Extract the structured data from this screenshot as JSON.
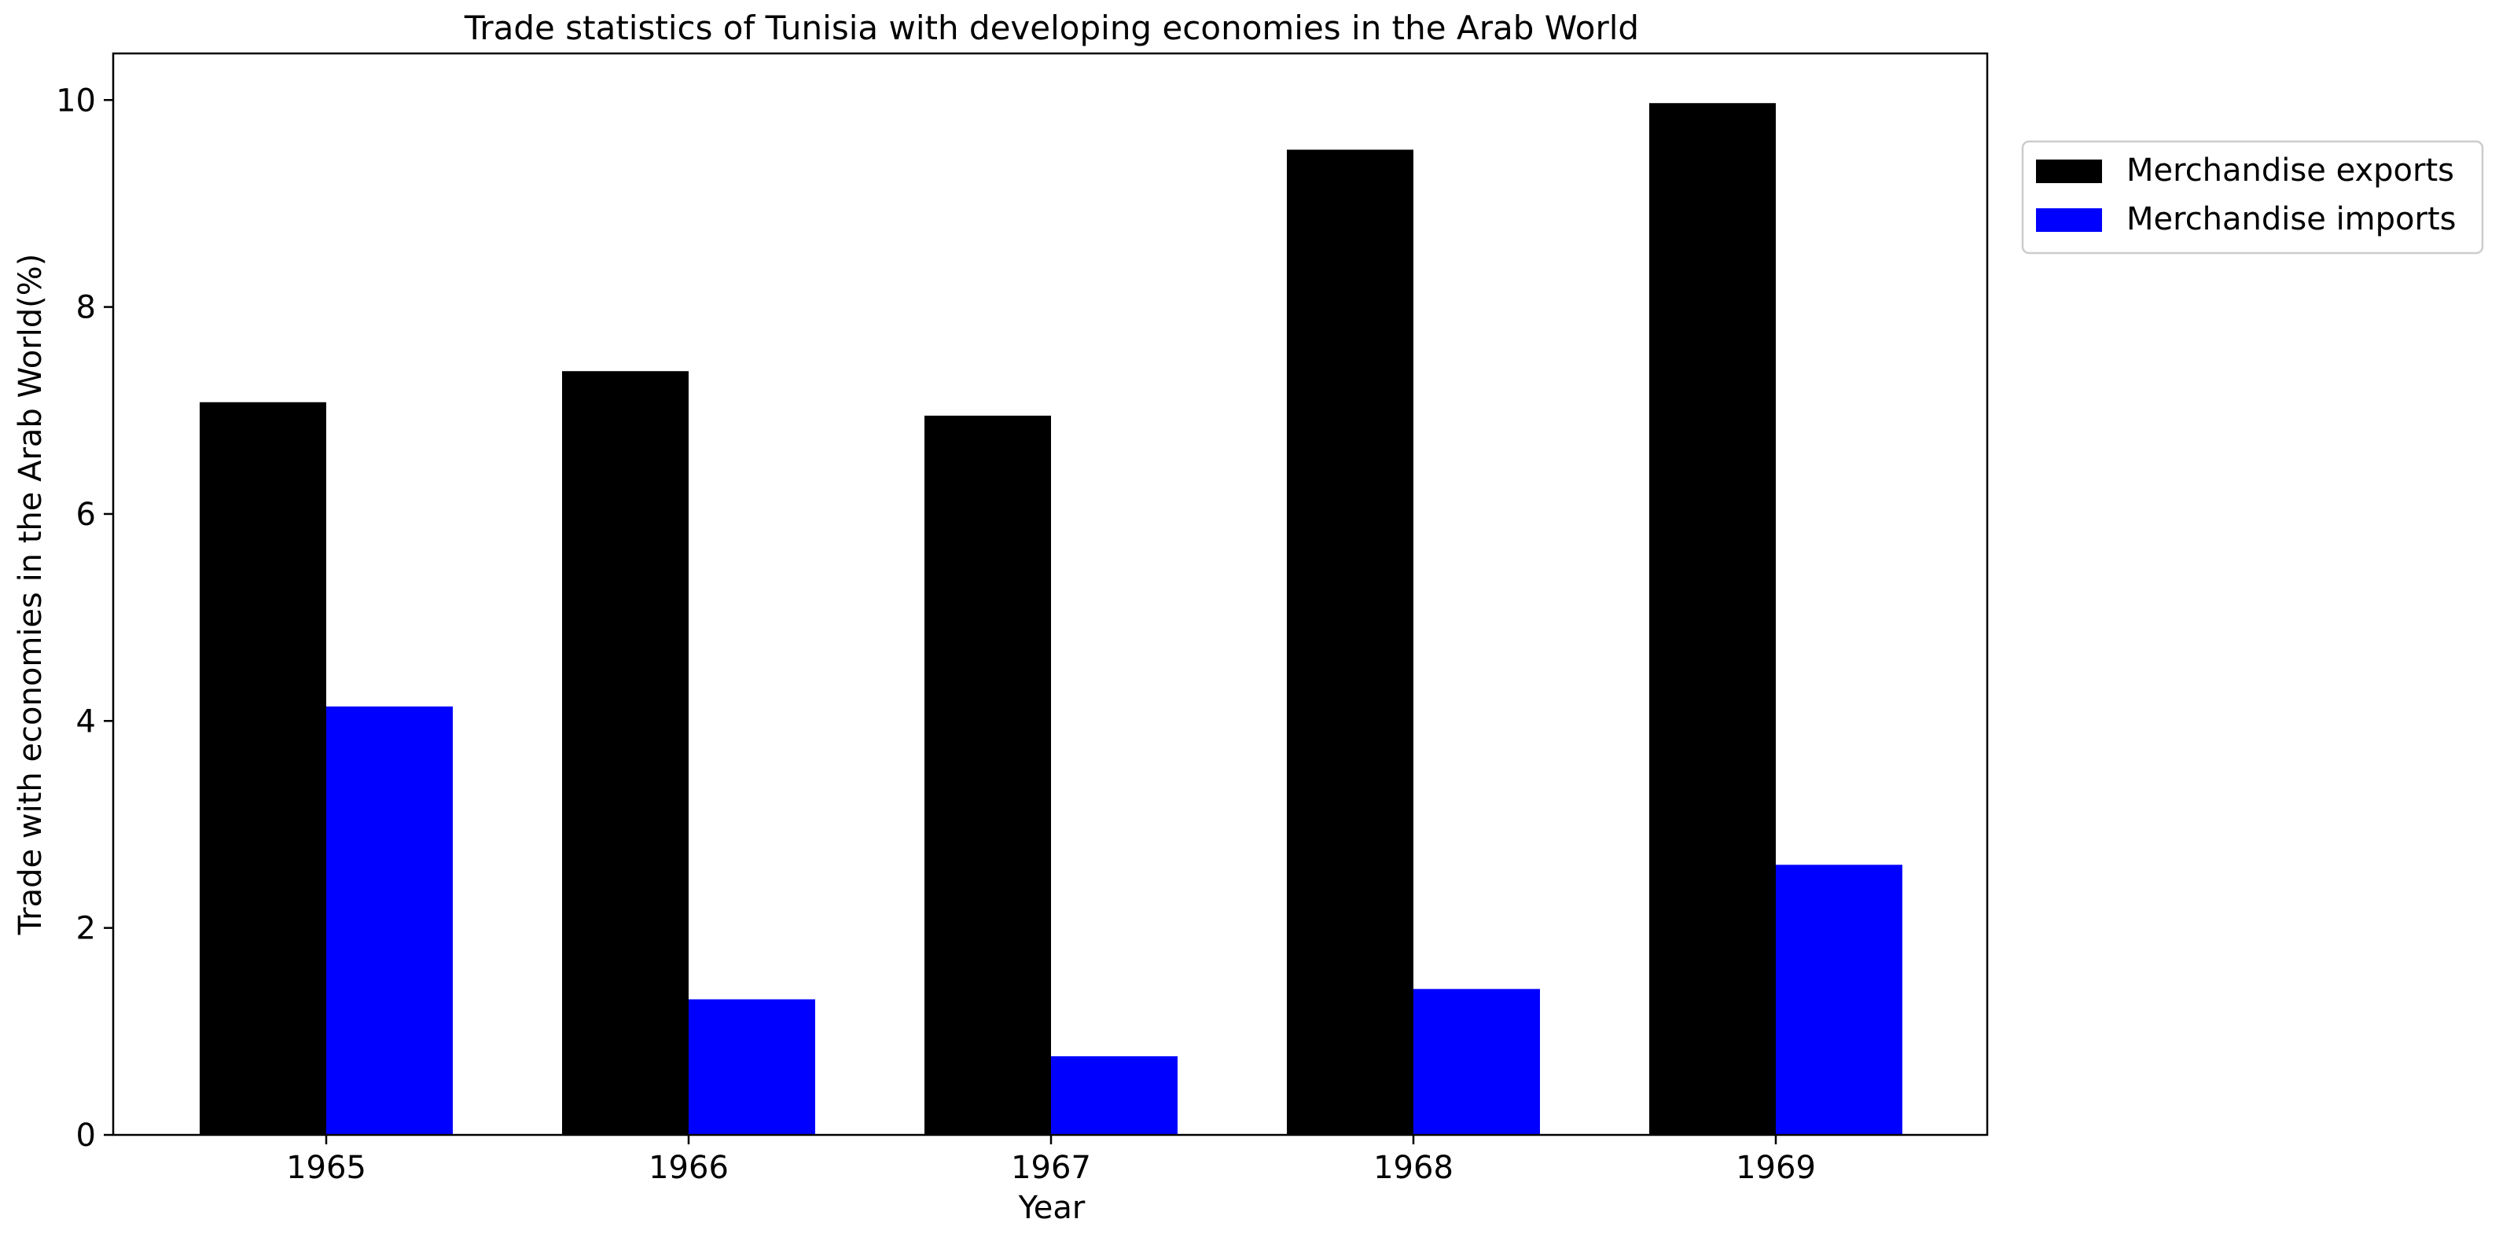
{
  "chart_data": {
    "type": "bar",
    "title": "Trade statistics of Tunisia with developing economies in the Arab World",
    "xlabel": "Year",
    "ylabel": "Trade with economies in the Arab World(%)",
    "categories": [
      "1965",
      "1966",
      "1967",
      "1968",
      "1969"
    ],
    "series": [
      {
        "name": "Merchandise exports",
        "color": "#000000",
        "values": [
          7.08,
          7.38,
          6.95,
          9.52,
          9.97
        ]
      },
      {
        "name": "Merchandise imports",
        "color": "#0000ff",
        "values": [
          4.14,
          1.31,
          0.76,
          1.41,
          2.61
        ]
      }
    ],
    "ylim": [
      0,
      10.45
    ],
    "yticks": [
      0,
      2,
      4,
      6,
      8,
      10
    ],
    "grid": false,
    "legend_position": "outside-top-right"
  }
}
